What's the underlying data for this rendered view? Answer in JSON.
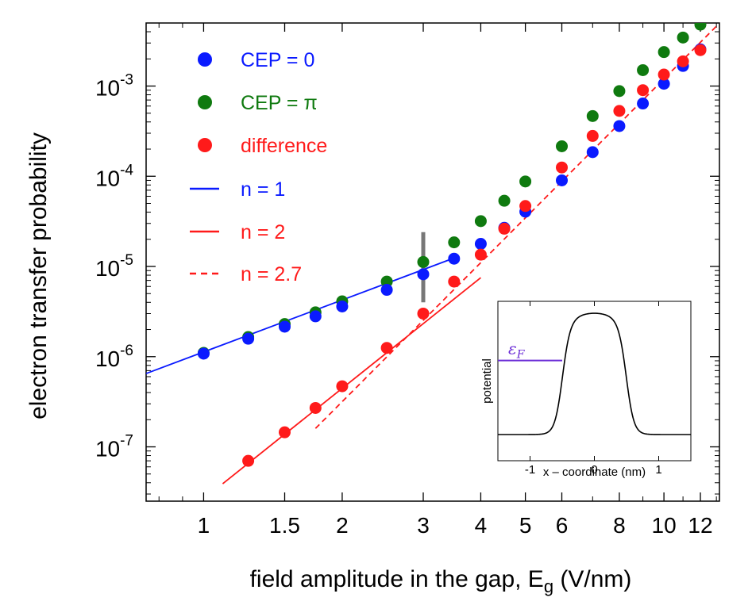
{
  "chart_data": [
    {
      "type": "scatter",
      "xscale": "log",
      "yscale": "log",
      "xlabel_main": "field amplitude in the gap, E",
      "xlabel_sub": "g",
      "xlabel_unit": " (V/nm)",
      "ylabel": "electron transfer probability",
      "xlim": [
        0.75,
        13.2
      ],
      "ylim": [
        2.5e-08,
        0.005
      ],
      "x_ticks": [
        {
          "v": 1,
          "label": "1"
        },
        {
          "v": 1.5,
          "label": "1.5"
        },
        {
          "v": 2,
          "label": "2"
        },
        {
          "v": 3,
          "label": "3"
        },
        {
          "v": 4,
          "label": "4"
        },
        {
          "v": 5,
          "label": "5"
        },
        {
          "v": 6,
          "label": "6"
        },
        {
          "v": 8,
          "label": "8"
        },
        {
          "v": 10,
          "label": "10"
        },
        {
          "v": 12,
          "label": "12"
        }
      ],
      "y_ticks": [
        {
          "v": 1e-07,
          "base": "10",
          "exp": "-7"
        },
        {
          "v": 1e-06,
          "base": "10",
          "exp": "-6"
        },
        {
          "v": 1e-05,
          "base": "10",
          "exp": "-5"
        },
        {
          "v": 0.0001,
          "base": "10",
          "exp": "-4"
        },
        {
          "v": 0.001,
          "base": "10",
          "exp": "-3"
        }
      ],
      "series": [
        {
          "name": "CEP = 0",
          "color": "#0a1aff",
          "kind": "points",
          "x": [
            1,
            1.25,
            1.5,
            1.75,
            2,
            2.5,
            3,
            3.5,
            4,
            4.5,
            5,
            6,
            7,
            8,
            9,
            10,
            11,
            12
          ],
          "y": [
            1.08e-06,
            1.58e-06,
            2.15e-06,
            2.8e-06,
            3.6e-06,
            5.5e-06,
            8.2e-06,
            1.22e-05,
            1.78e-05,
            2.68e-05,
            4.05e-05,
            9e-05,
            0.000185,
            0.00036,
            0.00064,
            0.00106,
            0.00167,
            0.00255
          ]
        },
        {
          "name": "CEP = π",
          "color": "#0f7a0f",
          "kind": "points",
          "x": [
            1,
            1.25,
            1.5,
            1.75,
            2,
            2.5,
            3,
            3.5,
            4,
            4.5,
            5,
            6,
            7,
            8,
            9,
            10,
            11,
            12
          ],
          "y": [
            1.1e-06,
            1.65e-06,
            2.3e-06,
            3.1e-06,
            4.1e-06,
            6.8e-06,
            1.12e-05,
            1.85e-05,
            3.18e-05,
            5.35e-05,
            8.75e-05,
            0.000215,
            0.000465,
            0.00088,
            0.0015,
            0.00238,
            0.00345,
            0.0048
          ]
        },
        {
          "name": "difference",
          "color": "#ff1a1a",
          "kind": "points",
          "x": [
            1.25,
            1.5,
            1.75,
            2,
            2.5,
            3,
            3.5,
            4,
            4.5,
            5,
            6,
            7,
            8,
            9,
            10,
            11,
            12
          ],
          "y": [
            7e-08,
            1.45e-07,
            2.7e-07,
            4.7e-07,
            1.25e-06,
            3e-06,
            6.8e-06,
            1.35e-05,
            2.62e-05,
            4.68e-05,
            0.000125,
            0.00028,
            0.00053,
            0.0009,
            0.00134,
            0.00188,
            0.0025
          ]
        },
        {
          "name": "n = 1",
          "color": "#0a1aff",
          "kind": "line",
          "dash": false,
          "x": [
            0.75,
            3.5
          ],
          "y": [
            6.5e-07,
            1.24e-05
          ]
        },
        {
          "name": "n = 2",
          "color": "#ff1a1a",
          "kind": "line",
          "dash": false,
          "x": [
            1.1,
            4
          ],
          "y": [
            3.9e-08,
            7.5e-06
          ]
        },
        {
          "name": "n = 2.7",
          "color": "#ff1a1a",
          "kind": "line",
          "dash": true,
          "x": [
            1.75,
            13
          ],
          "y": [
            1.6e-07,
            0.0046
          ]
        }
      ],
      "marker": {
        "x": 3,
        "y_from": 4e-06,
        "y_to": 2.4e-05,
        "color": "#777777"
      }
    },
    {
      "type": "line",
      "name": "inset",
      "xlabel": "x – coordinate (nm)",
      "ylabel": "potential",
      "xlim": [
        -1.5,
        1.5
      ],
      "ylim": [
        0,
        1
      ],
      "x_ticks": [
        {
          "v": -1,
          "label": "-1"
        },
        {
          "v": 0,
          "label": "0"
        },
        {
          "v": 1,
          "label": "1"
        }
      ],
      "fermi_label": "ε",
      "fermi_sub": "F",
      "fermi_level": 0.61,
      "fermi_x": [
        -1.5,
        -0.5
      ],
      "fermi_color": "#6a2bd6",
      "barrier": {
        "half_width": 0.5,
        "top": 1.0,
        "edge_sharpness": 0.06
      }
    }
  ]
}
